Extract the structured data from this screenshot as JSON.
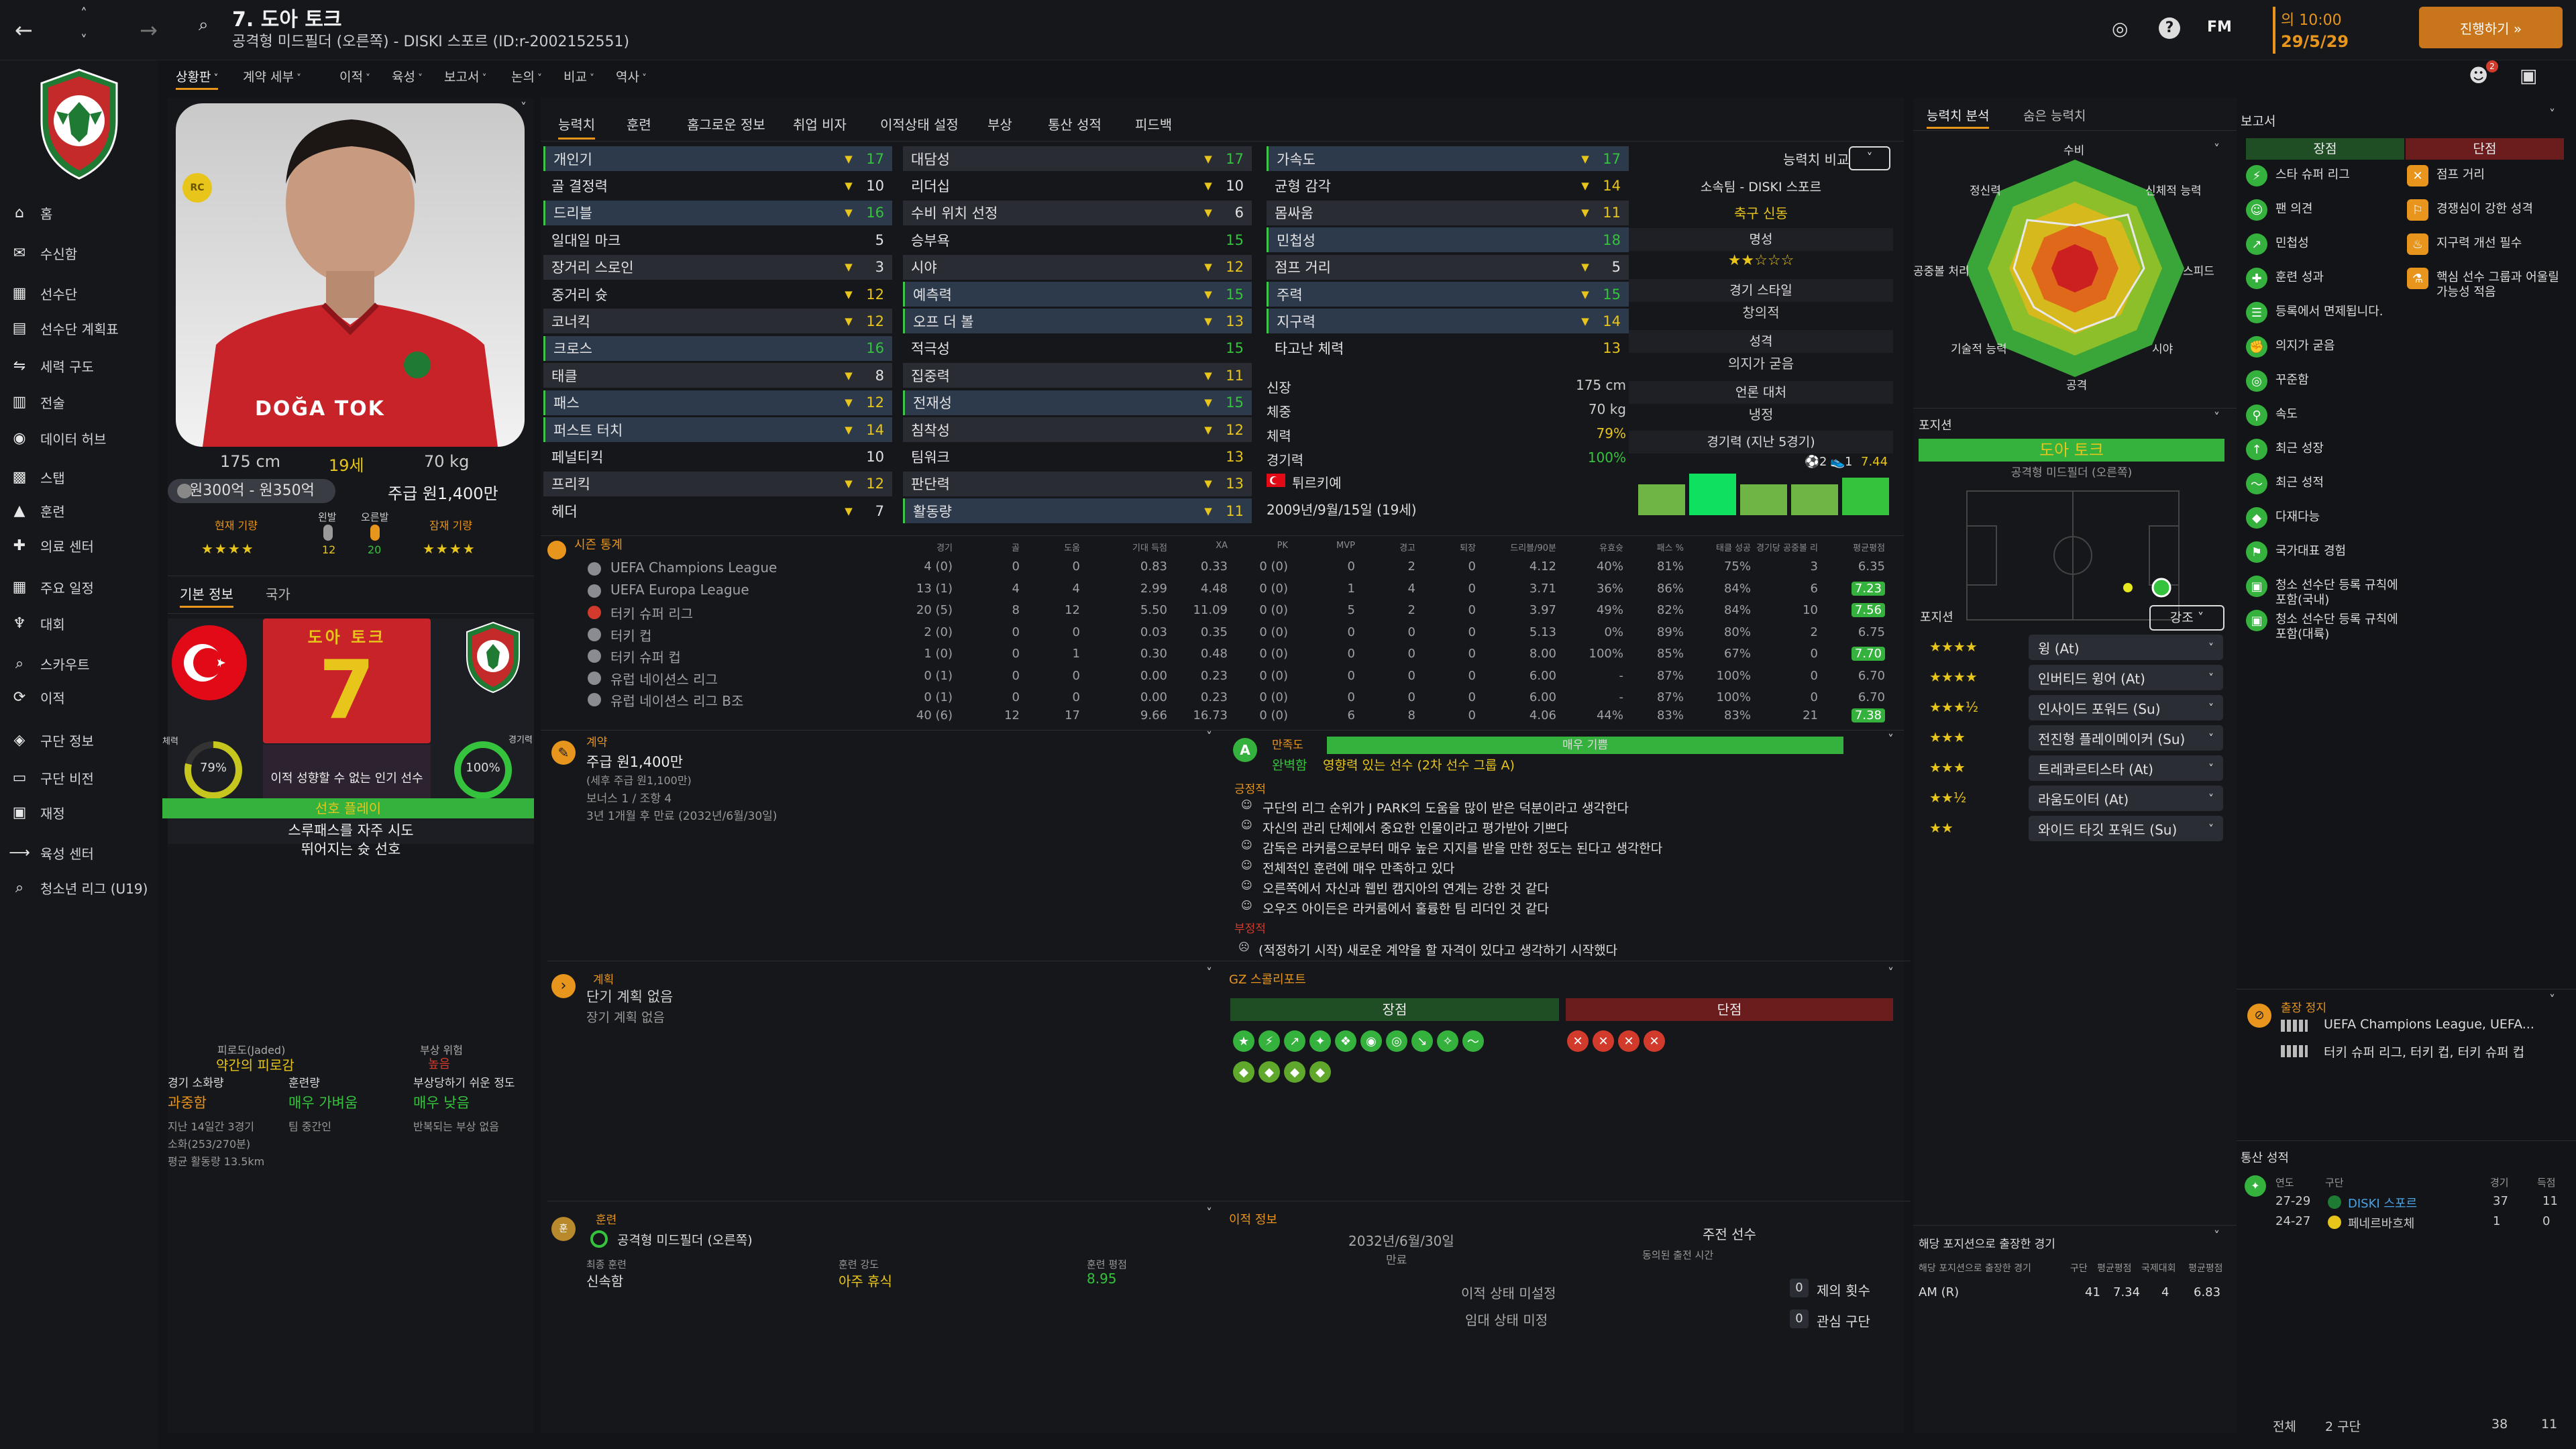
{
  "window": {
    "title": "7. 도아 토크",
    "subtitle": "공격형 미드필더 (오른쪽) - DISKI 스포르 (ID:r-2002152551)",
    "time": "의 10:00",
    "date": "29/5/29",
    "continue_label": "진행하기 »",
    "fm": "FM"
  },
  "nav": {
    "items": [
      {
        "label": "홈",
        "icon": "home-icon"
      },
      {
        "label": "수신함",
        "icon": "inbox-icon"
      },
      {
        "label": "선수단",
        "icon": "squad-icon"
      },
      {
        "label": "선수단 계획표",
        "icon": "plan-icon"
      },
      {
        "label": "세력 구도",
        "icon": "dynamics-icon"
      },
      {
        "label": "전술",
        "icon": "tactics-icon"
      },
      {
        "label": "데이터 허브",
        "icon": "data-icon"
      },
      {
        "label": "스탭",
        "icon": "staff-icon"
      },
      {
        "label": "훈련",
        "icon": "training-icon"
      },
      {
        "label": "의료 센터",
        "icon": "medical-icon"
      },
      {
        "label": "주요 일정",
        "icon": "calendar-icon"
      },
      {
        "label": "대회",
        "icon": "trophy-icon"
      },
      {
        "label": "스카우트",
        "icon": "scout-icon"
      },
      {
        "label": "이적",
        "icon": "transfer-icon"
      },
      {
        "label": "구단 정보",
        "icon": "club-icon"
      },
      {
        "label": "구단 비전",
        "icon": "vision-icon"
      },
      {
        "label": "재정",
        "icon": "finance-icon"
      },
      {
        "label": "육성 센터",
        "icon": "development-icon"
      },
      {
        "label": "청소년 리그 (U19)",
        "icon": "youth-icon"
      }
    ]
  },
  "subnav": {
    "items": [
      "상황판",
      "계약 세부",
      "이적",
      "육성",
      "보고서",
      "논의",
      "비교",
      "역사"
    ]
  },
  "profile": {
    "height": "175 cm",
    "age": "19세",
    "weight": "70 kg",
    "value": "원300억 - 원350억",
    "wage": "주급 원1,400만",
    "current_ability": "현재 기량",
    "potential_ability": "잠재 기량",
    "left_foot": "왼발",
    "right_foot": "오른발",
    "left_val": "12",
    "right_val": "20",
    "ca_stars": "★★★★",
    "pa_stars": "★★★★",
    "tab_basic": "기본 정보",
    "tab_country": "국가",
    "shirt_name": "도아 토크",
    "shirt_number": "7",
    "fitness_pct": "79%",
    "match_pct": "100%",
    "fitness_label": "체력",
    "match_label": "경기력",
    "popular": "이적 성향할 수 없는 인기 선수",
    "traits_title": "선호 플레이",
    "trait1": "스루패스를 자주 시도",
    "trait2": "뛰어지는 슛 선호",
    "jersey_text": "DOĞA TOK",
    "badge": "RC"
  },
  "condition": {
    "fatigue_label": "피로도(Jaded)",
    "fatigue_value": "약간의 피로감",
    "injury_label": "부상 위험",
    "injury_value": "높음",
    "load_label": "경기 소화량",
    "load_value": "과중함",
    "training_label": "훈련량",
    "training_value": "매우 가벼움",
    "prone_label": "부상당하기 쉬운 정도",
    "prone_value": "매우 낮음",
    "detail1": "지난 14일간 3경기",
    "detail1b": "팀 중간인",
    "detail1c": "반복되는 부상 없음",
    "detail2": "소화(253/270분)",
    "detail3": "평균 활동량 13.5km"
  },
  "tabs": [
    "능력치",
    "훈련",
    "홈그로운 정보",
    "취업 비자",
    "이적상태 설정",
    "부상",
    "통산 성적",
    "피드백"
  ],
  "attributes": {
    "technical": [
      {
        "name": "개인기",
        "value": "17"
      },
      {
        "name": "골 결정력",
        "value": "10"
      },
      {
        "name": "드리블",
        "value": "16"
      },
      {
        "name": "일대일 마크",
        "value": "5"
      },
      {
        "name": "장거리 스로인",
        "value": "3"
      },
      {
        "name": "중거리 슛",
        "value": "12"
      },
      {
        "name": "코너킥",
        "value": "12"
      },
      {
        "name": "크로스",
        "value": "16"
      },
      {
        "name": "태클",
        "value": "8"
      },
      {
        "name": "패스",
        "value": "12"
      },
      {
        "name": "퍼스트 터치",
        "value": "14"
      },
      {
        "name": "페널티킥",
        "value": "10"
      },
      {
        "name": "프리킥",
        "value": "12"
      },
      {
        "name": "헤더",
        "value": "7"
      }
    ],
    "mental": [
      {
        "name": "대담성",
        "value": "17"
      },
      {
        "name": "리더십",
        "value": "10"
      },
      {
        "name": "수비 위치 선정",
        "value": "6"
      },
      {
        "name": "승부욕",
        "value": "15"
      },
      {
        "name": "시야",
        "value": "12"
      },
      {
        "name": "예측력",
        "value": "15"
      },
      {
        "name": "오프 더 볼",
        "value": "13"
      },
      {
        "name": "적극성",
        "value": "15"
      },
      {
        "name": "집중력",
        "value": "11"
      },
      {
        "name": "전재성",
        "value": "15"
      },
      {
        "name": "침착성",
        "value": "12"
      },
      {
        "name": "팀워크",
        "value": "13"
      },
      {
        "name": "판단력",
        "value": "13"
      },
      {
        "name": "활동량",
        "value": "11"
      }
    ],
    "physical": [
      {
        "name": "가속도",
        "value": "17"
      },
      {
        "name": "균형 감각",
        "value": "14"
      },
      {
        "name": "몸싸움",
        "value": "11"
      },
      {
        "name": "민첩성",
        "value": "18"
      },
      {
        "name": "점프 거리",
        "value": "5"
      },
      {
        "name": "주력",
        "value": "15"
      },
      {
        "name": "지구력",
        "value": "14"
      },
      {
        "name": "타고난 체력",
        "value": "13"
      }
    ]
  },
  "bio": {
    "height_label": "신장",
    "height": "175 cm",
    "weight_label": "체중",
    "weight": "70 kg",
    "fitness_label": "체력",
    "fitness": "79%",
    "match_label": "경기력",
    "match": "100%",
    "nation": "튀르키예",
    "birth": "2009년/9월/15일 (19세)"
  },
  "compare": {
    "label": "능력치 비교",
    "club": "소속팀 - DISKI 스포르",
    "league": "축구 신동",
    "reputation_label": "명성",
    "reputation_stars": "★★☆☆☆",
    "style_label": "경기 스타일",
    "style": "창의적",
    "personality_label": "성격",
    "personality": "의지가 굳음",
    "media_label": "언론 대처",
    "media": "냉정",
    "form_label": "경기력 (지난 5경기)",
    "rating": "7.44",
    "goals": "2",
    "assists": "1"
  },
  "season_stats": {
    "label": "시즌 통계",
    "headers": [
      "경기",
      "골",
      "도움",
      "기대 득점",
      "XA",
      "PK",
      "MVP",
      "경고",
      "퇴장",
      "드리블/90분",
      "유효슛",
      "패스 %",
      "태클 성공",
      "경기당 공중볼 리",
      "평균평점"
    ],
    "rows": [
      {
        "comp": "UEFA Champions League",
        "vals": [
          "4 (0)",
          "0",
          "0",
          "0.83",
          "0.33",
          "0 (0)",
          "0",
          "2",
          "0",
          "4.12",
          "40%",
          "81%",
          "75%",
          "3",
          "6.35"
        ]
      },
      {
        "comp": "UEFA Europa League",
        "vals": [
          "13 (1)",
          "4",
          "4",
          "2.99",
          "4.48",
          "0 (0)",
          "1",
          "4",
          "0",
          "3.71",
          "36%",
          "86%",
          "84%",
          "6",
          "7.23"
        ]
      },
      {
        "comp": "터키 슈퍼 리그",
        "vals": [
          "20 (5)",
          "8",
          "12",
          "5.50",
          "11.09",
          "0 (0)",
          "5",
          "2",
          "0",
          "3.97",
          "49%",
          "82%",
          "84%",
          "10",
          "7.56"
        ]
      },
      {
        "comp": "터키 컵",
        "vals": [
          "2 (0)",
          "0",
          "0",
          "0.03",
          "0.35",
          "0 (0)",
          "0",
          "0",
          "0",
          "5.13",
          "0%",
          "89%",
          "80%",
          "2",
          "6.75"
        ]
      },
      {
        "comp": "터키 슈퍼 컵",
        "vals": [
          "1 (0)",
          "0",
          "1",
          "0.30",
          "0.48",
          "0 (0)",
          "0",
          "0",
          "0",
          "8.00",
          "100%",
          "85%",
          "67%",
          "0",
          "7.70"
        ]
      },
      {
        "comp": "유럽 네이션스 리그",
        "vals": [
          "0 (1)",
          "0",
          "0",
          "0.00",
          "0.23",
          "0 (0)",
          "0",
          "0",
          "0",
          "6.00",
          "-",
          "87%",
          "100%",
          "0",
          "6.70"
        ]
      },
      {
        "comp": "유럽 네이션스 리그 B조",
        "vals": [
          "0 (1)",
          "0",
          "0",
          "0.00",
          "0.23",
          "0 (0)",
          "0",
          "0",
          "0",
          "6.00",
          "-",
          "87%",
          "100%",
          "0",
          "6.70"
        ]
      }
    ],
    "total": [
      "40 (6)",
      "12",
      "17",
      "9.66",
      "16.73",
      "0 (0)",
      "6",
      "8",
      "0",
      "4.06",
      "44%",
      "83%",
      "83%",
      "21",
      "7.38"
    ]
  },
  "contract": {
    "label": "계약",
    "wage": "주급 원1,400만",
    "wage_sub": "(세후 주급 원1,100만)",
    "bonus": "보너스 1 / 조항 4",
    "expiry": "3년 1개월 후 만료 (2032년/6월/30일)"
  },
  "plans": {
    "label": "계획",
    "short": "단기 계획 없음",
    "long": "장기 계획 없음"
  },
  "satisfaction": {
    "label": "만족도",
    "level": "매우 기쁨",
    "status": "완벽함",
    "subtext": "영향력 있는 선수 (2차 선수 그룹 A)",
    "positive_label": "긍정적",
    "positives": [
      "구단의 리그 순위가 J PARK의 도움을 많이 받은 덕분이라고 생각한다",
      "자신의 관리 단체에서 중요한 인물이라고 평가받아 기쁘다",
      "감독은 라커룸으로부터 매우 높은 지지를 받을 만한 정도는 된다고 생각한다",
      "전체적인 훈련에 매우 만족하고 있다",
      "오른쪽에서 자신과 웹빈 캠지아의 연계는 강한 것 같다",
      "오우즈 아이든은 라커룸에서 훌륭한 팀 리더인 것 같다"
    ],
    "negative_label": "부정적",
    "negative": "(적정하기 시작) 새로운 계약을 할 자격이 있다고 생각하기 시작했다"
  },
  "scout": {
    "label": "GZ 스콜리포트",
    "strengths": "장점",
    "weaknesses": "단점"
  },
  "training": {
    "label": "훈련",
    "role": "공격형 미드필더 (오른쪽)",
    "unit_label": "최종 훈련",
    "unit": "신속함",
    "intensity_label": "훈련 강도",
    "intensity": "아주 휴식",
    "rating_label": "훈련 평점",
    "rating": "8.95"
  },
  "transfer": {
    "label": "이적 정보",
    "date": "2032년/6월/30일",
    "date_label": "만료",
    "status1": "이적 상태 미설정",
    "status2": "임대 상태 미정",
    "role_label": "주전 선수",
    "role_sub": "동의된 출전 시간",
    "interest1": "제의 횟수",
    "interest2": "관심 구단",
    "int1_val": "0",
    "int2_val": "0"
  },
  "analysis": {
    "tab1": "능력치 분석",
    "tab2": "숨은 능력치",
    "labels": [
      "수비",
      "신체적 능력",
      "스피드",
      "시야",
      "공격",
      "기술적 능력",
      "공중볼 처리",
      "정신력"
    ]
  },
  "position": {
    "label": "포지션",
    "name": "도아 토크",
    "role": "공격형 미드필더 (오른쪽)",
    "roles_label": "포지션",
    "roles_filter": "강조",
    "roles": [
      {
        "stars": "★★★★",
        "name": "윙 (At)"
      },
      {
        "stars": "★★★★",
        "name": "인버티드 윙어 (At)"
      },
      {
        "stars": "★★★½",
        "name": "인사이드 포워드 (Su)"
      },
      {
        "stars": "★★★",
        "name": "전진형 플레이메이커 (Su)"
      },
      {
        "stars": "★★★",
        "name": "트레콰르티스타 (At)"
      },
      {
        "stars": "★★½",
        "name": "라움도이터 (At)"
      },
      {
        "stars": "★★",
        "name": "와이드 타깃 포워드 (Su)"
      }
    ]
  },
  "pos_games": {
    "label": "해당 포지션으로 출장한 경기",
    "sublabel": "해당 포지션으로 출장한 경기",
    "headers": [
      "구단",
      "평균평점",
      "국제대회",
      "평균평점"
    ],
    "row": [
      "AM (R)",
      "41",
      "7.34",
      "4",
      "6.83"
    ]
  },
  "report": {
    "label": "보고서",
    "strengths_label": "장점",
    "weaknesses_label": "단점",
    "strengths": [
      "스타 슈퍼 리그",
      "팬 의견",
      "민첩성",
      "훈련 성과",
      "등록에서 면제됩니다.",
      "의지가 굳음",
      "꾸준함",
      "속도",
      "최근 성장",
      "최근 성적",
      "다재다능",
      "국가대표 경험",
      "청소 선수단 등록 규칙에 포함(국내)",
      "청소 선수단 등록 규칙에 포함(대륙)"
    ],
    "weaknesses": [
      "점프 거리",
      "경쟁심이 강한 성격",
      "지구력 개선 필수",
      "핵심 선수 그룹과 어울릴 가능성 적음"
    ]
  },
  "suspension": {
    "label": "출장 정지",
    "line1": "UEFA Champions League, UEFA...",
    "line2": "터키 슈퍼 리그, 터키 컵, 터키 슈퍼 컵"
  },
  "history": {
    "label": "통산 성적",
    "headers": [
      "연도",
      "구단",
      "경기",
      "득점"
    ],
    "rows": [
      [
        "27-29",
        "DISKI 스포르",
        "37",
        "11"
      ],
      [
        "24-27",
        "페네르바흐체",
        "1",
        "0"
      ]
    ],
    "total_label": "전체",
    "total_clubs": "2 구단",
    "total_games": "38",
    "total_goals": "11"
  },
  "colors": {
    "accent": "#35c33d",
    "warning": "#e7951c",
    "danger": "#d23b2c",
    "gold": "#e8c51b",
    "panel": "#1a1b20"
  }
}
